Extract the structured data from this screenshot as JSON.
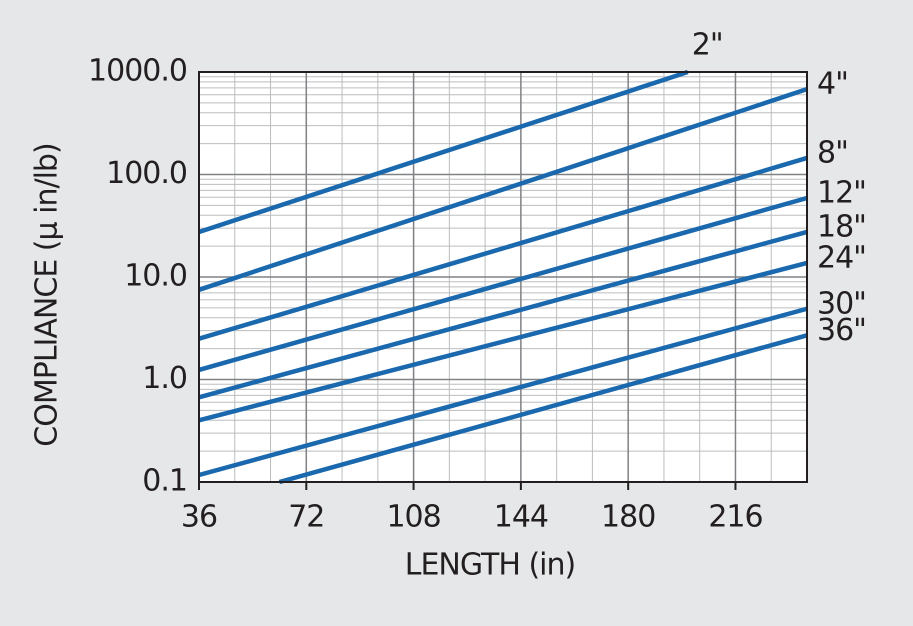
{
  "chart_data": {
    "type": "line",
    "log_y": true,
    "grid": true,
    "color": "#1a68ad",
    "xlabel": "LENGTH (in)",
    "ylabel": "COMPLIANCE (µ in/lb)",
    "xlim": [
      36,
      240
    ],
    "xticks": [
      36,
      72,
      108,
      144,
      180,
      216
    ],
    "ylim": [
      0.1,
      1000
    ],
    "yticks": [
      0.1,
      {
        "value": 1,
        "label": "1.0"
      },
      {
        "value": 10,
        "label": "10.0"
      },
      {
        "value": 100,
        "label": "100.0"
      },
      {
        "value": 1000,
        "label": "1000.0"
      }
    ],
    "series": [
      {
        "name": "2\"",
        "x": [
          36,
          200
        ],
        "values": [
          27.5,
          1000
        ]
      },
      {
        "name": "4\"",
        "x": [
          36,
          240
        ],
        "values": [
          7.5,
          680
        ]
      },
      {
        "name": "8\"",
        "x": [
          36,
          240
        ],
        "values": [
          2.5,
          145
        ]
      },
      {
        "name": "12\"",
        "x": [
          36,
          240
        ],
        "values": [
          1.24,
          59
        ]
      },
      {
        "name": "18\"",
        "x": [
          36,
          240
        ],
        "values": [
          0.67,
          27.5
        ]
      },
      {
        "name": "24\"",
        "x": [
          36,
          240
        ],
        "values": [
          0.4,
          13.7
        ]
      },
      {
        "name": "30\"",
        "x": [
          36,
          240
        ],
        "values": [
          0.117,
          4.9
        ]
      },
      {
        "name": "36\"",
        "x": [
          63,
          240
        ],
        "values": [
          0.1,
          2.7
        ]
      }
    ]
  }
}
